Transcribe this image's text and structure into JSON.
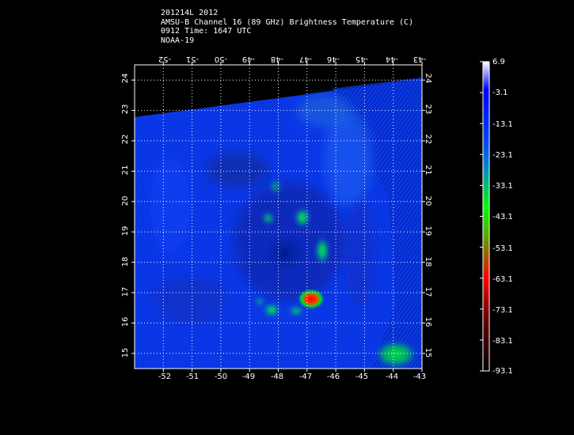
{
  "header": {
    "line1": "201214L 2012",
    "line2": "AMSU-B Channel 16 (89 GHz) Brightness Temperature (C)",
    "line3": "0912 Time: 1647 UTC",
    "line4": "NOAA-19"
  },
  "map": {
    "lon_labels": [
      "-52",
      "-51",
      "-50",
      "-49",
      "-48",
      "-47",
      "-46",
      "-45",
      "-44",
      "-43"
    ],
    "lat_labels": [
      "24",
      "23",
      "22",
      "21",
      "20",
      "19",
      "18",
      "17",
      "16",
      "15"
    ],
    "lon_range": [
      -53,
      -43
    ],
    "lat_range": [
      14.5,
      24.5
    ],
    "grid": true,
    "no_data_color": "#000000"
  },
  "colorbar": {
    "labels": [
      "6.9",
      "-3.1",
      "-13.1",
      "-23.1",
      "-33.1",
      "-43.1",
      "-53.1",
      "-63.1",
      "-73.1",
      "-83.1",
      "-93.1"
    ],
    "stops": [
      "#ffffff",
      "#0000ff",
      "#0060ff",
      "#00b060",
      "#00ff00",
      "#808000",
      "#ff0000",
      "#800000",
      "#000000"
    ]
  }
}
